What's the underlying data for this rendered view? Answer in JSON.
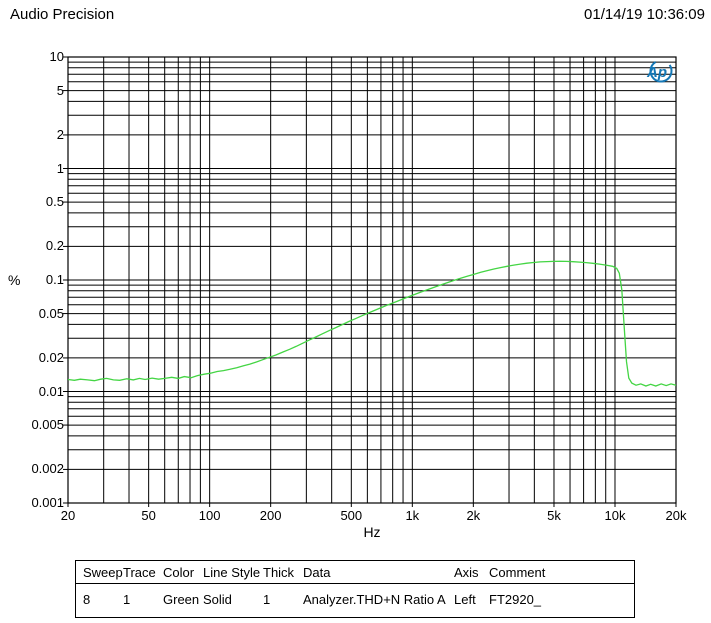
{
  "header": {
    "title": "Audio Precision",
    "timestamp": "01/14/19 10:36:09"
  },
  "chart_data": {
    "type": "line",
    "title": "Audio Precision",
    "xlabel": "Hz",
    "ylabel": "%",
    "x_scale": "log",
    "y_scale": "log",
    "xlim": [
      20,
      20000
    ],
    "ylim": [
      0.001,
      10
    ],
    "grid": true,
    "grid_color": "#000000",
    "background": "#ffffff",
    "x_ticks": [
      {
        "value": 20,
        "label": "20"
      },
      {
        "value": 50,
        "label": "50"
      },
      {
        "value": 100,
        "label": "100"
      },
      {
        "value": 200,
        "label": "200"
      },
      {
        "value": 500,
        "label": "500"
      },
      {
        "value": 1000,
        "label": "1k"
      },
      {
        "value": 2000,
        "label": "2k"
      },
      {
        "value": 5000,
        "label": "5k"
      },
      {
        "value": 10000,
        "label": "10k"
      },
      {
        "value": 20000,
        "label": "20k"
      }
    ],
    "y_ticks": [
      {
        "value": 10,
        "label": "10"
      },
      {
        "value": 5,
        "label": "5"
      },
      {
        "value": 2,
        "label": "2"
      },
      {
        "value": 1,
        "label": "1"
      },
      {
        "value": 0.5,
        "label": "0.5"
      },
      {
        "value": 0.2,
        "label": "0.2"
      },
      {
        "value": 0.1,
        "label": "0.1"
      },
      {
        "value": 0.05,
        "label": "0.05"
      },
      {
        "value": 0.02,
        "label": "0.02"
      },
      {
        "value": 0.01,
        "label": "0.01"
      },
      {
        "value": 0.005,
        "label": "0.005"
      },
      {
        "value": 0.002,
        "label": "0.002"
      },
      {
        "value": 0.001,
        "label": "0.001"
      }
    ],
    "logo": {
      "text": "Ap",
      "color": "#1577b5"
    },
    "series": [
      {
        "name": "Analyzer.THD+N Ratio A",
        "color_name": "Green",
        "color": "#44d544",
        "line_style": "Solid",
        "thickness": 1,
        "axis": "Left",
        "points": [
          [
            20,
            0.0128
          ],
          [
            21.5,
            0.0126
          ],
          [
            23,
            0.0129
          ],
          [
            25,
            0.0127
          ],
          [
            27,
            0.0125
          ],
          [
            29,
            0.0129
          ],
          [
            31,
            0.0131
          ],
          [
            33.5,
            0.0127
          ],
          [
            36,
            0.0126
          ],
          [
            39,
            0.013
          ],
          [
            42,
            0.0127
          ],
          [
            45,
            0.0131
          ],
          [
            48,
            0.0128
          ],
          [
            52,
            0.0132
          ],
          [
            56,
            0.0129
          ],
          [
            60,
            0.0131
          ],
          [
            65,
            0.0134
          ],
          [
            70,
            0.0131
          ],
          [
            75,
            0.0136
          ],
          [
            81,
            0.0133
          ],
          [
            87,
            0.0139
          ],
          [
            94,
            0.0143
          ],
          [
            101,
            0.0146
          ],
          [
            109,
            0.0151
          ],
          [
            117,
            0.0154
          ],
          [
            126,
            0.0158
          ],
          [
            136,
            0.0163
          ],
          [
            147,
            0.017
          ],
          [
            158,
            0.0176
          ],
          [
            170,
            0.0184
          ],
          [
            183,
            0.0193
          ],
          [
            198,
            0.0203
          ],
          [
            213,
            0.0213
          ],
          [
            230,
            0.0226
          ],
          [
            248,
            0.0239
          ],
          [
            267,
            0.0254
          ],
          [
            288,
            0.0271
          ],
          [
            310,
            0.0289
          ],
          [
            334,
            0.0308
          ],
          [
            360,
            0.0329
          ],
          [
            388,
            0.0351
          ],
          [
            419,
            0.0374
          ],
          [
            451,
            0.0398
          ],
          [
            486,
            0.0424
          ],
          [
            524,
            0.045
          ],
          [
            565,
            0.0478
          ],
          [
            609,
            0.0507
          ],
          [
            656,
            0.0537
          ],
          [
            707,
            0.0568
          ],
          [
            762,
            0.06
          ],
          [
            822,
            0.0634
          ],
          [
            886,
            0.0669
          ],
          [
            954,
            0.0705
          ],
          [
            1029,
            0.0743
          ],
          [
            1109,
            0.0782
          ],
          [
            1195,
            0.0822
          ],
          [
            1288,
            0.0864
          ],
          [
            1388,
            0.0906
          ],
          [
            1496,
            0.095
          ],
          [
            1613,
            0.0994
          ],
          [
            1738,
            0.1039
          ],
          [
            1873,
            0.1084
          ],
          [
            2019,
            0.1128
          ],
          [
            2176,
            0.1172
          ],
          [
            2345,
            0.1214
          ],
          [
            2527,
            0.1255
          ],
          [
            2724,
            0.1293
          ],
          [
            2936,
            0.1328
          ],
          [
            3164,
            0.1361
          ],
          [
            3410,
            0.139
          ],
          [
            3675,
            0.1415
          ],
          [
            3961,
            0.1436
          ],
          [
            4269,
            0.1452
          ],
          [
            4601,
            0.1463
          ],
          [
            4959,
            0.1469
          ],
          [
            5345,
            0.1471
          ],
          [
            5760,
            0.1468
          ],
          [
            6208,
            0.146
          ],
          [
            6691,
            0.1448
          ],
          [
            7211,
            0.1432
          ],
          [
            7772,
            0.1412
          ],
          [
            8377,
            0.1388
          ],
          [
            9028,
            0.136
          ],
          [
            9730,
            0.1328
          ],
          [
            10200,
            0.127
          ],
          [
            10500,
            0.115
          ],
          [
            10800,
            0.082
          ],
          [
            11100,
            0.038
          ],
          [
            11400,
            0.0185
          ],
          [
            11700,
            0.0132
          ],
          [
            12100,
            0.0119
          ],
          [
            12700,
            0.0114
          ],
          [
            13400,
            0.0117
          ],
          [
            14200,
            0.0112
          ],
          [
            15000,
            0.0116
          ],
          [
            15900,
            0.0112
          ],
          [
            16900,
            0.0117
          ],
          [
            17900,
            0.0113
          ],
          [
            18900,
            0.0117
          ],
          [
            20000,
            0.0114
          ]
        ]
      }
    ]
  },
  "legend_table": {
    "headers": [
      "Sweep",
      "Trace",
      "Color",
      "Line Style",
      "Thick",
      "Data",
      "Axis",
      "Comment"
    ],
    "rows": [
      [
        "8",
        "1",
        "Green",
        "Solid",
        "1",
        "Analyzer.THD+N Ratio A",
        "Left",
        "FT2920_"
      ]
    ]
  }
}
